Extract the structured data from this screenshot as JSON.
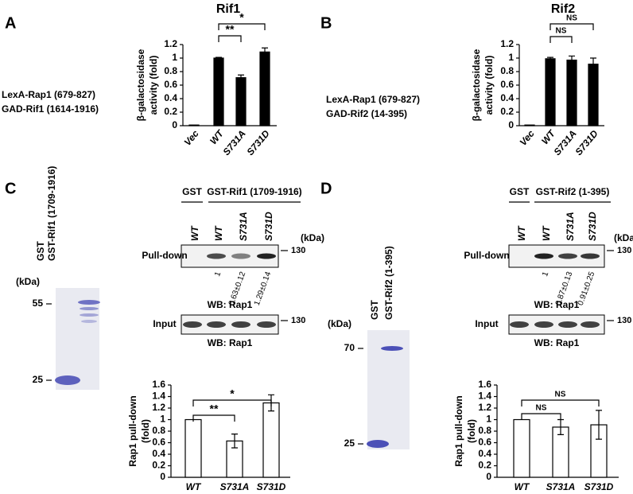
{
  "panel_letters": [
    "A",
    "B",
    "C",
    "D"
  ],
  "constructs": [
    [
      "LexA-Rap1 (679-827)",
      "GAD-Rif1 (1614-1916)"
    ],
    [
      "LexA-Rap1 (679-827)",
      "GAD-Rif2 (14-395)"
    ]
  ],
  "gels": [
    {
      "lanes": [
        "GST",
        "GST-Rif1 (1709-1916)"
      ],
      "unit": "(kDa)",
      "markers": [
        55,
        25
      ]
    },
    {
      "lanes": [
        "GST",
        "GST-Rif2 (1-395)"
      ],
      "unit": "(kDa)",
      "markers": [
        70,
        25
      ]
    }
  ],
  "blots": [
    {
      "groups": [
        "GST",
        "GST-Rif1 (1709-1916)"
      ],
      "lanes": [
        "WT",
        "WT",
        "S731A",
        "S731D"
      ],
      "unit": "(kDa)",
      "rows": [
        "Pull-down",
        "Input"
      ],
      "marker": 130,
      "quant": [
        "1",
        "0.63±0.12",
        "1.29±0.14"
      ],
      "wb": "WB: Rap1"
    },
    {
      "groups": [
        "GST",
        "GST-Rif2 (1-395)"
      ],
      "lanes": [
        "WT",
        "WT",
        "S731A",
        "S731D"
      ],
      "unit": "(kDa)",
      "rows": [
        "Pull-down",
        "Input"
      ],
      "marker": 130,
      "quant": [
        "1",
        "0.87±0.13",
        "0.91±0.25"
      ],
      "wb": "WB: Rap1"
    }
  ],
  "chart_data": [
    {
      "type": "bar",
      "title": "Rif1",
      "ylabel": [
        "β-galactosidase",
        "activity (fold)"
      ],
      "categories": [
        "Vec",
        "WT",
        "S731A",
        "S731D"
      ],
      "values": [
        0.01,
        1.0,
        0.71,
        1.09
      ],
      "errors": [
        0.0,
        0.01,
        0.04,
        0.06
      ],
      "ylim": [
        0,
        1.2
      ],
      "yticks": [
        0,
        0.2,
        0.4,
        0.6,
        0.8,
        1,
        1.2
      ],
      "color": "#000000",
      "edgecolor": "#000000",
      "annotations": [
        "**",
        "*"
      ]
    },
    {
      "type": "bar",
      "title": "Rif2",
      "ylabel": [
        "β-galactosidase",
        "activity (fold)"
      ],
      "categories": [
        "Vec",
        "WT",
        "S731A",
        "S731D"
      ],
      "values": [
        0.01,
        0.99,
        0.97,
        0.91
      ],
      "errors": [
        0.0,
        0.02,
        0.06,
        0.09
      ],
      "ylim": [
        0,
        1.2
      ],
      "yticks": [
        0,
        0.2,
        0.4,
        0.6,
        0.8,
        1,
        1.2
      ],
      "color": "#000000",
      "edgecolor": "#000000",
      "annotations": [
        "NS",
        "NS"
      ]
    },
    {
      "type": "bar",
      "ylabel": [
        "Rap1 pull-down",
        "(fold)"
      ],
      "categories": [
        "WT",
        "S731A",
        "S731D"
      ],
      "values": [
        1,
        0.63,
        1.29
      ],
      "errors": [
        0,
        0.12,
        0.14
      ],
      "ylim": [
        0,
        1.6
      ],
      "yticks": [
        0,
        0.2,
        0.4,
        0.6,
        0.8,
        1,
        1.2,
        1.4,
        1.6
      ],
      "color": "#ffffff",
      "edgecolor": "#000000",
      "annotations": [
        "**",
        "*"
      ]
    },
    {
      "type": "bar",
      "ylabel": [
        "Rap1 pull-down",
        "(fold)"
      ],
      "categories": [
        "WT",
        "S731A",
        "S731D"
      ],
      "values": [
        1,
        0.87,
        0.91
      ],
      "errors": [
        0,
        0.13,
        0.25
      ],
      "ylim": [
        0,
        1.6
      ],
      "yticks": [
        0,
        0.2,
        0.4,
        0.6,
        0.8,
        1,
        1.2,
        1.4,
        1.6
      ],
      "color": "#ffffff",
      "edgecolor": "#000000",
      "annotations": [
        "NS",
        "NS"
      ]
    }
  ]
}
